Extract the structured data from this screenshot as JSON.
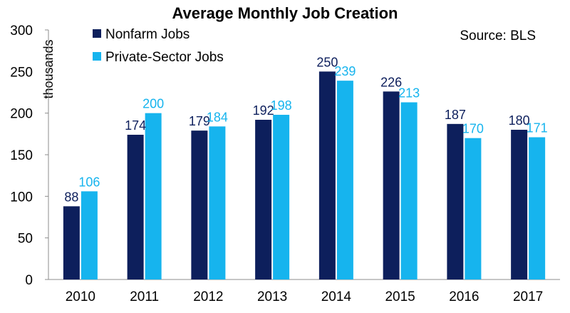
{
  "chart_data": {
    "type": "bar",
    "title": "Average Monthly Job Creation",
    "ylabel": "thousands",
    "xlabel": "",
    "source_note": "Source: BLS",
    "categories": [
      "2010",
      "2011",
      "2012",
      "2013",
      "2014",
      "2015",
      "2016",
      "2017"
    ],
    "series": [
      {
        "name": "Nonfarm Jobs",
        "values": [
          88,
          174,
          179,
          192,
          250,
          226,
          187,
          180
        ],
        "color": "#0d1f5c"
      },
      {
        "name": "Private-Sector Jobs",
        "values": [
          106,
          200,
          184,
          198,
          239,
          213,
          170,
          171
        ],
        "color": "#16b4ee"
      }
    ],
    "ylim": [
      0,
      300
    ],
    "yticks": [
      0,
      50,
      100,
      150,
      200,
      250,
      300
    ],
    "grid": false,
    "legend_position": "top-left"
  }
}
